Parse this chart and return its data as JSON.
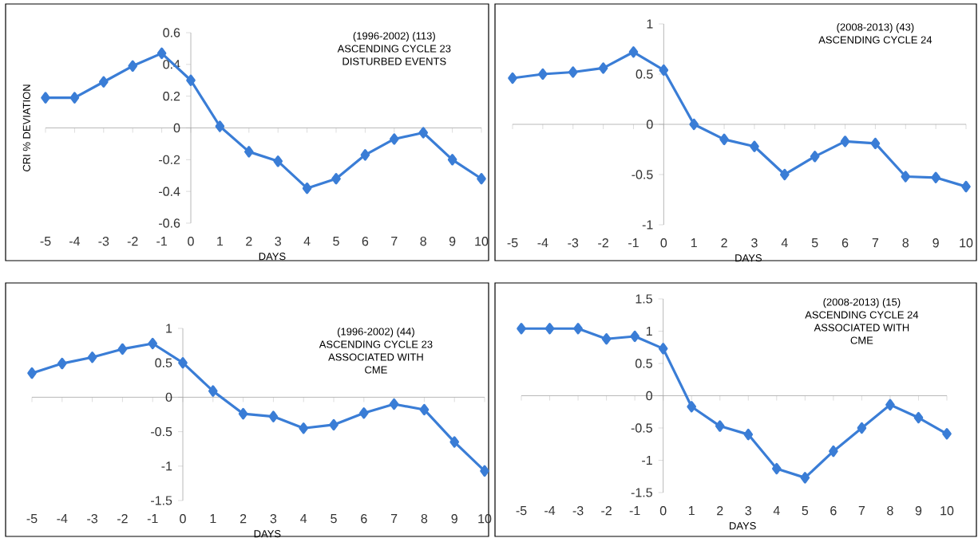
{
  "chart_data": [
    {
      "type": "line",
      "title": "(1996-2002) (113)",
      "annotations": [
        "ASCENDING CYCLE 23",
        "DISTURBED EVENTS"
      ],
      "xlabel": "DAYS",
      "ylabel": "CRI % DEVIATION",
      "x": [
        -5,
        -4,
        -3,
        -2,
        -1,
        0,
        1,
        2,
        3,
        4,
        5,
        6,
        7,
        8,
        9,
        10
      ],
      "values": [
        0.19,
        0.19,
        0.29,
        0.39,
        0.47,
        0.3,
        0.01,
        -0.15,
        -0.21,
        -0.38,
        -0.32,
        -0.17,
        -0.07,
        -0.03,
        -0.2,
        -0.32
      ],
      "color": "#3a7dd6",
      "marker": "diamond",
      "xlim": [
        -5,
        10
      ],
      "xticks": [
        -5,
        -4,
        -3,
        -2,
        -1,
        0,
        1,
        2,
        3,
        4,
        5,
        6,
        7,
        8,
        9,
        10
      ],
      "ylim": [
        -0.6,
        0.6
      ],
      "yticks": [
        -0.6,
        -0.4,
        -0.2,
        0,
        0.2,
        0.4,
        0.6
      ]
    },
    {
      "type": "line",
      "title": "(2008-2013) (43)",
      "annotations": [
        "ASCENDING CYCLE 24"
      ],
      "xlabel": "DAYS",
      "x": [
        -5,
        -4,
        -3,
        -2,
        -1,
        0,
        1,
        2,
        3,
        4,
        5,
        6,
        7,
        8,
        9,
        10
      ],
      "values": [
        0.46,
        0.5,
        0.52,
        0.56,
        0.72,
        0.54,
        0.0,
        -0.15,
        -0.22,
        -0.5,
        -0.32,
        -0.17,
        -0.19,
        -0.52,
        -0.53,
        -0.62
      ],
      "color": "#3a7dd6",
      "marker": "diamond",
      "xlim": [
        -5,
        10
      ],
      "xticks": [
        -5,
        -4,
        -3,
        -2,
        -1,
        0,
        1,
        2,
        3,
        4,
        5,
        6,
        7,
        8,
        9,
        10
      ],
      "ylim": [
        -1,
        1
      ],
      "yticks": [
        -1,
        -0.5,
        0,
        0.5,
        1
      ]
    },
    {
      "type": "line",
      "title": "(1996-2002) (44)",
      "annotations": [
        "ASCENDING CYCLE 23",
        "ASSOCIATED WITH",
        "CME"
      ],
      "xlabel": "DAYS",
      "x": [
        -5,
        -4,
        -3,
        -2,
        -1,
        0,
        1,
        2,
        3,
        4,
        5,
        6,
        7,
        8,
        9,
        10
      ],
      "values": [
        0.35,
        0.49,
        0.58,
        0.7,
        0.78,
        0.5,
        0.09,
        -0.24,
        -0.28,
        -0.45,
        -0.4,
        -0.23,
        -0.1,
        -0.18,
        -0.65,
        -1.07
      ],
      "color": "#3a7dd6",
      "marker": "diamond",
      "xlim": [
        -5,
        10
      ],
      "xticks": [
        -5,
        -4,
        -3,
        -2,
        -1,
        0,
        1,
        2,
        3,
        4,
        5,
        6,
        7,
        8,
        9,
        10
      ],
      "ylim": [
        -1.5,
        1
      ],
      "yticks": [
        -1.5,
        -1,
        -0.5,
        0,
        0.5,
        1
      ]
    },
    {
      "type": "line",
      "title": "(2008-2013) (15)",
      "annotations": [
        "ASCENDING CYCLE 24",
        "ASSOCIATED WITH",
        "CME"
      ],
      "xlabel": "DAYS",
      "x": [
        -5,
        -4,
        -3,
        -2,
        -1,
        0,
        1,
        2,
        3,
        4,
        5,
        6,
        7,
        8,
        9,
        10
      ],
      "values": [
        1.04,
        1.04,
        1.04,
        0.88,
        0.92,
        0.73,
        -0.17,
        -0.47,
        -0.6,
        -1.13,
        -1.27,
        -0.86,
        -0.5,
        -0.14,
        -0.34,
        -0.59
      ],
      "color": "#3a7dd6",
      "marker": "diamond",
      "xlim": [
        -5,
        10
      ],
      "xticks": [
        -5,
        -4,
        -3,
        -2,
        -1,
        0,
        1,
        2,
        3,
        4,
        5,
        6,
        7,
        8,
        9,
        10
      ],
      "ylim": [
        -1.5,
        1.5
      ],
      "yticks": [
        -1.5,
        -1,
        -0.5,
        0,
        0.5,
        1,
        1.5
      ]
    }
  ]
}
